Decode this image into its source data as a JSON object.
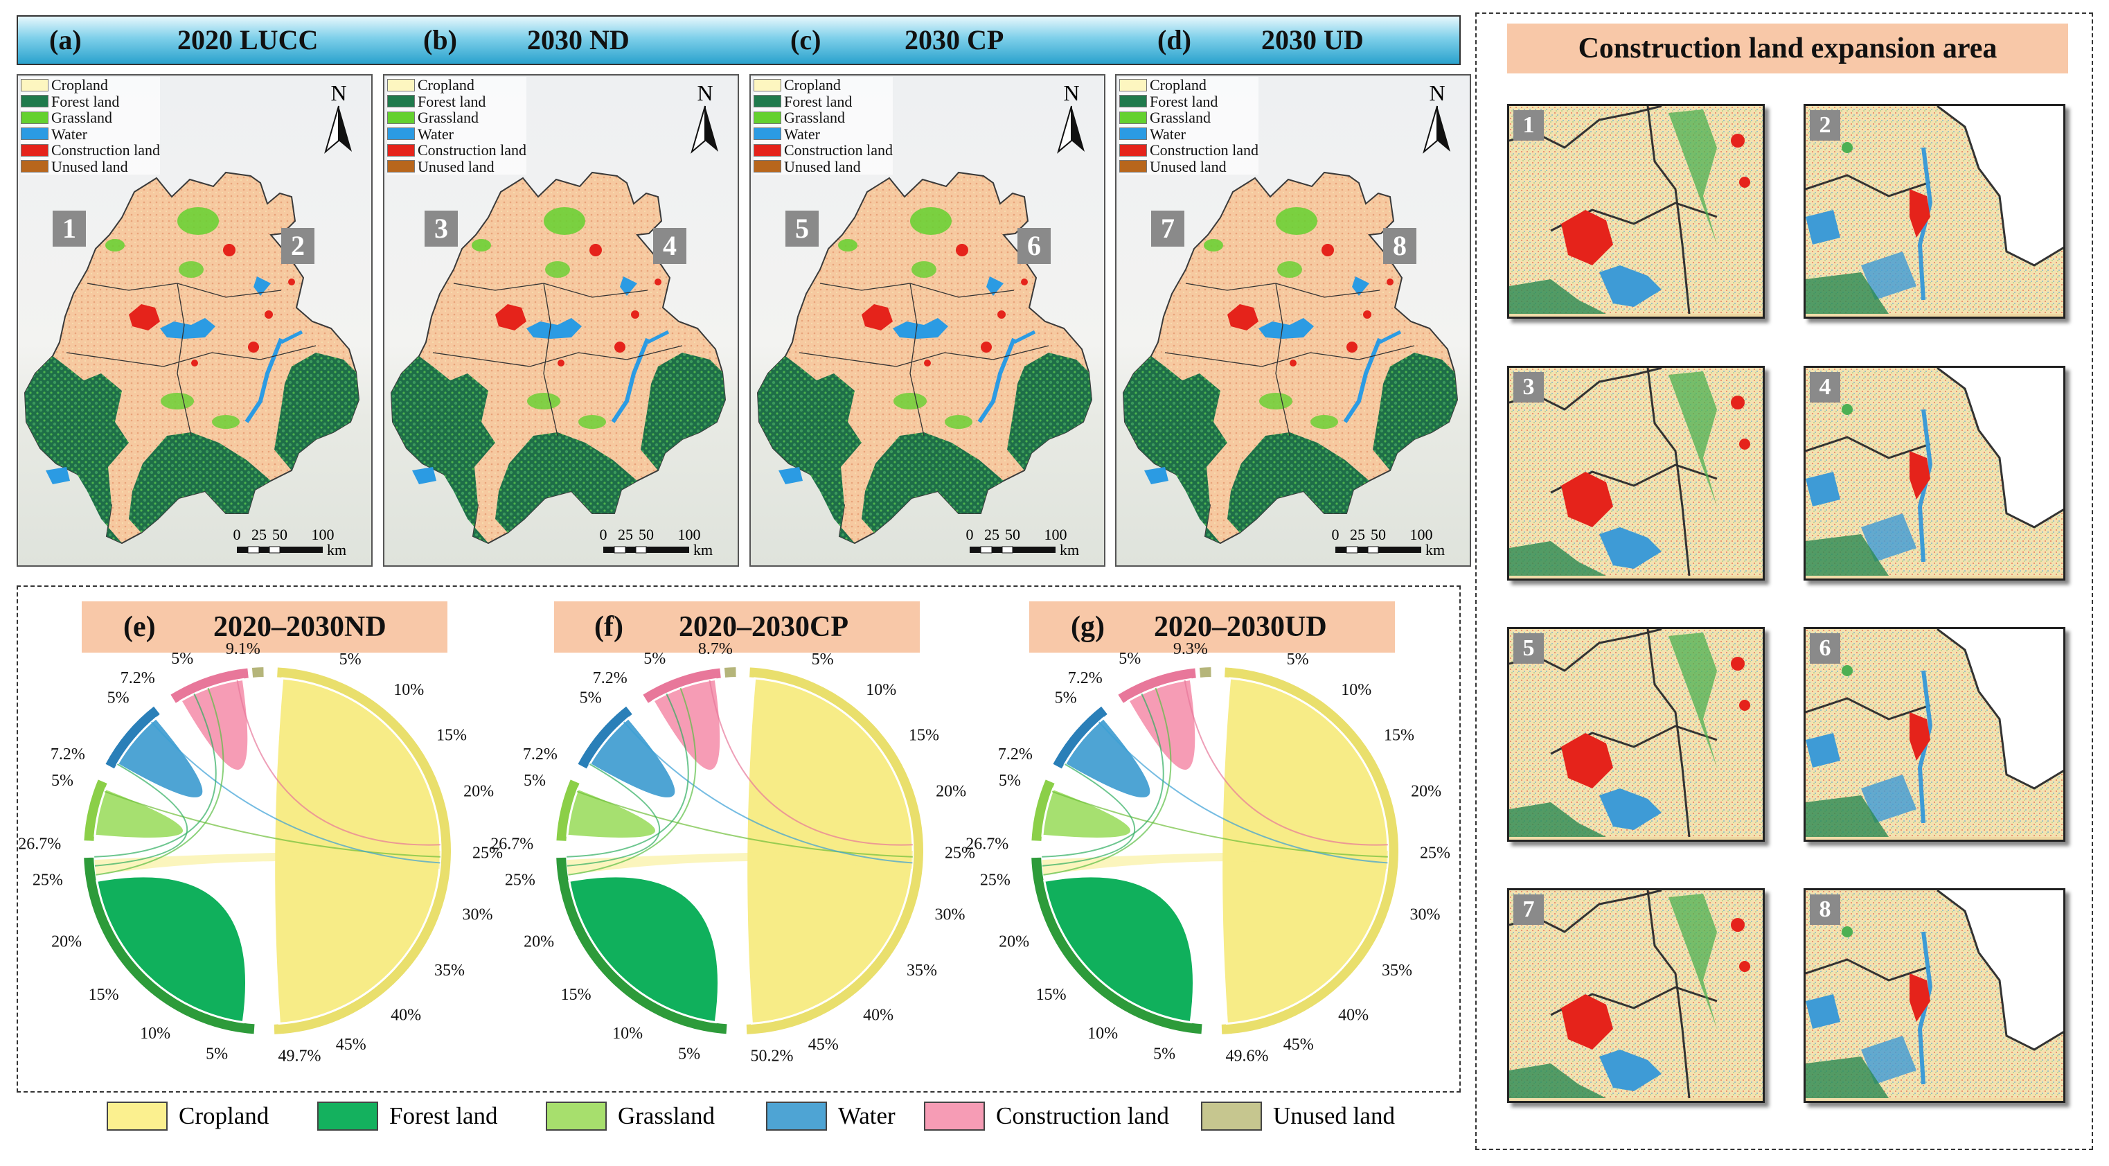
{
  "panels": [
    {
      "letter": "(a)",
      "title": "2020 LUCC",
      "left_num": "1",
      "right_num": "2"
    },
    {
      "letter": "(b)",
      "title": "2030 ND",
      "left_num": "3",
      "right_num": "4"
    },
    {
      "letter": "(c)",
      "title": "2030 CP",
      "left_num": "5",
      "right_num": "6"
    },
    {
      "letter": "(d)",
      "title": "2030 UD",
      "left_num": "7",
      "right_num": "8"
    }
  ],
  "map_legend": [
    {
      "label": "Cropland",
      "color": "#fdf6c0"
    },
    {
      "label": "Forest land",
      "color": "#1f7a4c"
    },
    {
      "label": "Grassland",
      "color": "#64d12f"
    },
    {
      "label": "Water",
      "color": "#2b9be3"
    },
    {
      "label": "Construction land",
      "color": "#e5231b"
    },
    {
      "label": "Unused land",
      "color": "#b8661c"
    }
  ],
  "north_label": "N",
  "scale": {
    "ticks": [
      "0",
      "25",
      "50",
      "100"
    ],
    "unit": "km"
  },
  "expansion": {
    "title": "Construction land expansion area",
    "insets": [
      "1",
      "2",
      "3",
      "4",
      "5",
      "6",
      "7",
      "8"
    ]
  },
  "chord_titles": [
    {
      "letter": "(e)",
      "title": "2020–2030ND"
    },
    {
      "letter": "(f)",
      "title": "2020–2030CP"
    },
    {
      "letter": "(g)",
      "title": "2020–2030UD"
    }
  ],
  "chord_colors": {
    "cropland": "#f7ec87",
    "forest": "#10b05c",
    "grassland": "#a6e070",
    "water": "#4ea4d4",
    "construction": "#f69cb5",
    "unused": "#c5c588"
  },
  "chart_data": [
    {
      "type": "chord",
      "title": "2020–2030ND",
      "top_label": "9.1%",
      "bottom_label": "49.7%",
      "left_labels": [
        "5%",
        "7.2%",
        "5%",
        "7.2%",
        "5%",
        "26.7%",
        "25%",
        "20%",
        "15%",
        "10%",
        "5%"
      ],
      "right_ticks": [
        "5%",
        "10%",
        "15%",
        "20%",
        "25%",
        "30%",
        "35%",
        "40%",
        "45%"
      ]
    },
    {
      "type": "chord",
      "title": "2020–2030CP",
      "top_label": "8.7%",
      "bottom_label": "50.2%",
      "left_labels": [
        "5%",
        "7.2%",
        "5%",
        "7.2%",
        "5%",
        "26.7%",
        "25%",
        "20%",
        "15%",
        "10%",
        "5%"
      ],
      "right_ticks": [
        "5%",
        "10%",
        "15%",
        "20%",
        "25%",
        "30%",
        "35%",
        "40%",
        "45%"
      ]
    },
    {
      "type": "chord",
      "title": "2020–2030UD",
      "top_label": "9.3%",
      "bottom_label": "49.6%",
      "left_labels": [
        "5%",
        "7.2%",
        "5%",
        "7.2%",
        "5%",
        "26.7%",
        "25%",
        "20%",
        "15%",
        "10%",
        "5%"
      ],
      "right_ticks": [
        "5%",
        "10%",
        "15%",
        "20%",
        "25%",
        "30%",
        "35%",
        "40%",
        "45%"
      ]
    }
  ],
  "bottom_legend": [
    {
      "label": "Cropland",
      "color": "#fbf08f"
    },
    {
      "label": "Forest land",
      "color": "#14b15e"
    },
    {
      "label": "Grassland",
      "color": "#a7df6d"
    },
    {
      "label": "Water",
      "color": "#4ea4d4"
    },
    {
      "label": "Construction land",
      "color": "#f69cb5"
    },
    {
      "label": "Unused land",
      "color": "#c6c68f"
    }
  ]
}
